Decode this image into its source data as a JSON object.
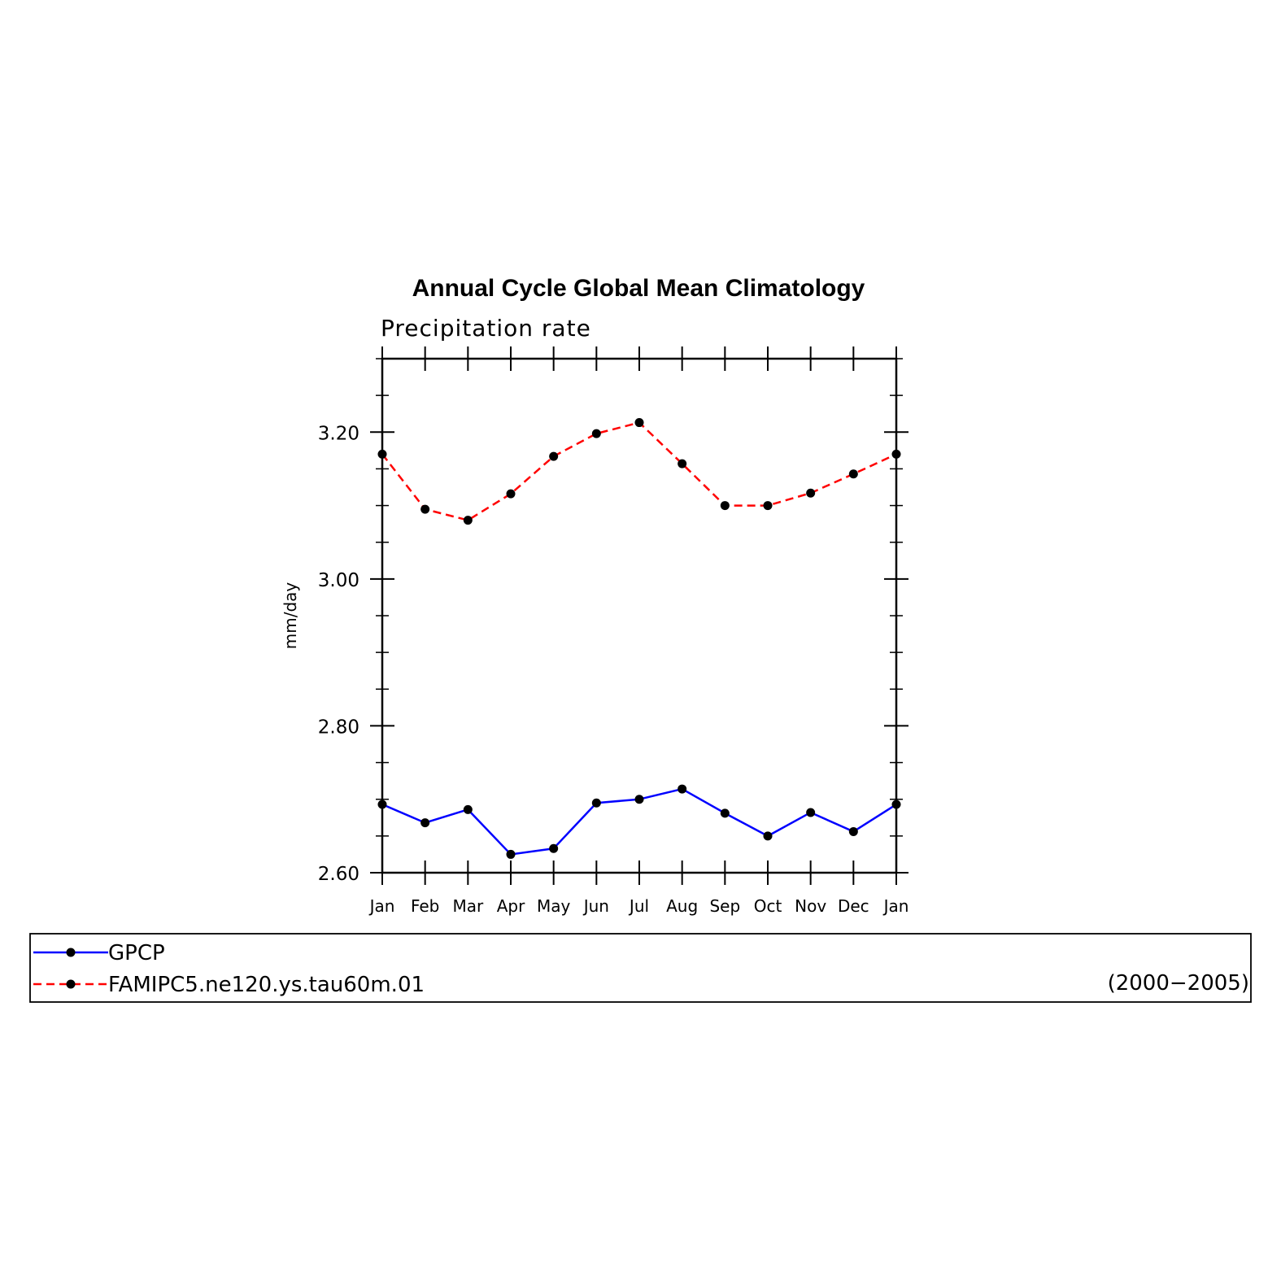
{
  "chart_data": {
    "type": "line",
    "title": "Annual Cycle Global Mean Climatology",
    "subtitle": "Precipitation rate",
    "xlabel": "",
    "ylabel": "mm/day",
    "categories": [
      "Jan",
      "Feb",
      "Mar",
      "Apr",
      "May",
      "Jun",
      "Jul",
      "Aug",
      "Sep",
      "Oct",
      "Nov",
      "Dec",
      "Jan"
    ],
    "ylim": [
      2.6,
      3.3
    ],
    "yticks": [
      2.6,
      2.8,
      3.0,
      3.2
    ],
    "ytick_labels": [
      "2.60",
      "2.80",
      "3.00",
      "3.20"
    ],
    "grid": false,
    "legend_position": "bottom",
    "legend_note": "(2000−2005)",
    "series": [
      {
        "name": "GPCP",
        "color": "#0000ff",
        "line_style": "solid",
        "marker": "filled-circle",
        "values": [
          2.693,
          2.668,
          2.686,
          2.625,
          2.633,
          2.695,
          2.7,
          2.714,
          2.681,
          2.65,
          2.682,
          2.656,
          2.693
        ]
      },
      {
        "name": "FAMIPC5.ne120.ys.tau60m.01",
        "color": "#ff0000",
        "line_style": "dashed",
        "marker": "filled-circle",
        "values": [
          3.17,
          3.095,
          3.08,
          3.116,
          3.167,
          3.198,
          3.213,
          3.157,
          3.1,
          3.1,
          3.117,
          3.143,
          3.17
        ]
      }
    ]
  }
}
